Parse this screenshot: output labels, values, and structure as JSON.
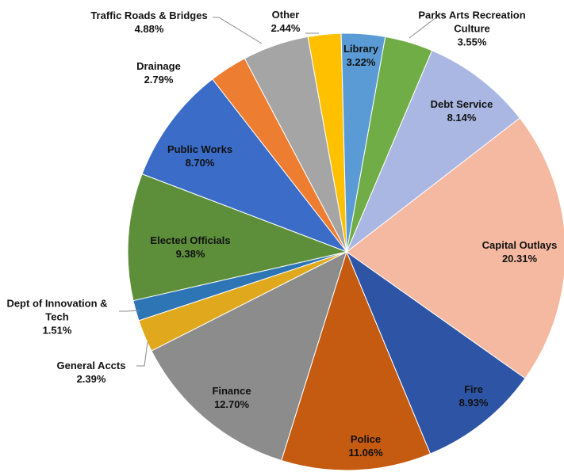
{
  "chart_data": {
    "type": "pie",
    "categories": [
      "Library",
      "Parks Arts Recreation Culture",
      "Debt Service",
      "Capital Outlays",
      "Fire",
      "Police",
      "Finance",
      "General Accts",
      "Dept of Innovation & Tech",
      "Elected Officials",
      "Public Works",
      "Drainage",
      "Traffic Roads & Bridges",
      "Other"
    ],
    "values": [
      3.22,
      3.55,
      8.14,
      20.31,
      8.93,
      11.06,
      12.7,
      2.39,
      1.51,
      9.38,
      8.7,
      2.79,
      4.88,
      2.44
    ],
    "value_labels": [
      "3.22%",
      "3.55%",
      "8.14%",
      "20.31%",
      "8.93%",
      "11.06%",
      "12.70%",
      "2.39%",
      "1.51%",
      "9.38%",
      "8.70%",
      "2.79%",
      "4.88%",
      "2.44%"
    ],
    "colors": [
      "#5b9bd5",
      "#70ad47",
      "#aab7e2",
      "#f4b9a0",
      "#2e55a5",
      "#c55a11",
      "#8c8c8c",
      "#e0a81c",
      "#2e75b6",
      "#5d8e3a",
      "#3a6cc8",
      "#ed7d31",
      "#a5a5a5",
      "#ffc000"
    ]
  }
}
